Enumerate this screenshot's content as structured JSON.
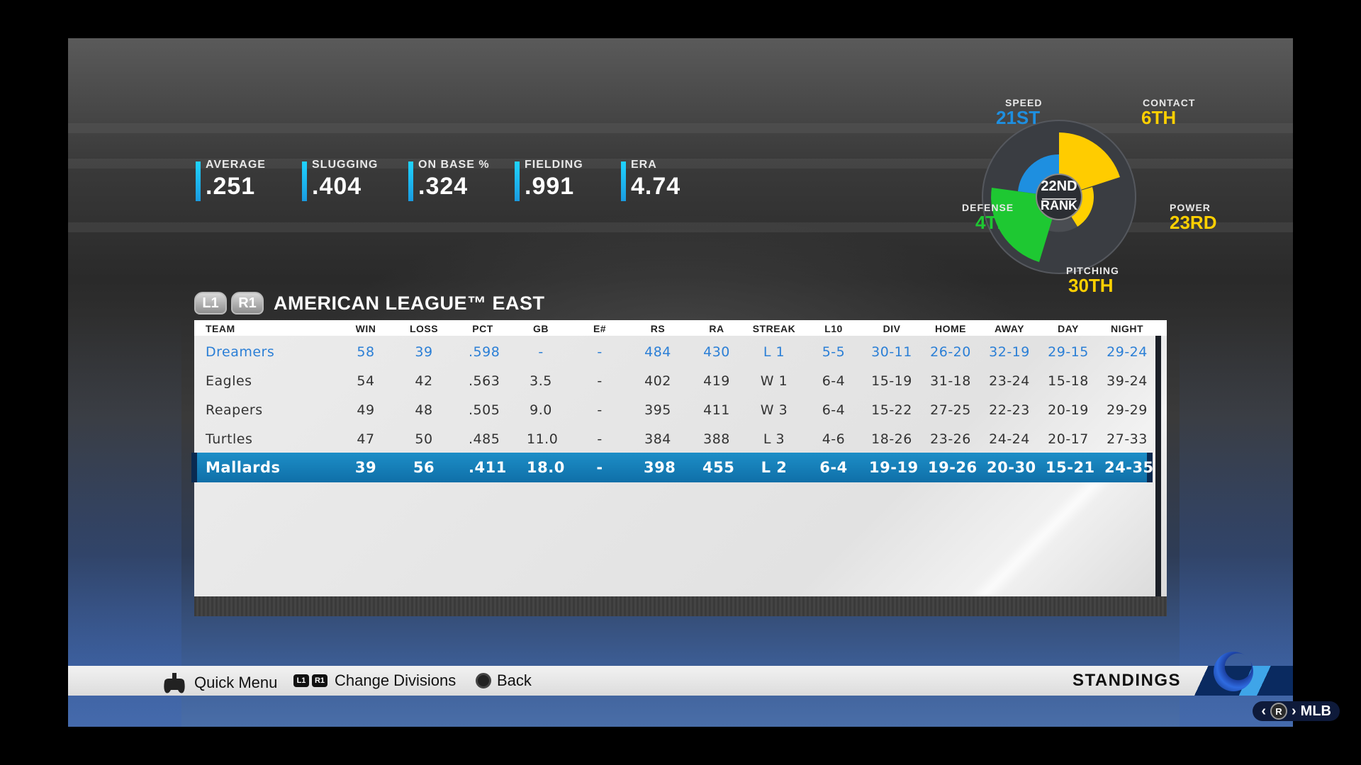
{
  "team_stats": [
    {
      "label": "AVERAGE",
      "value": ".251"
    },
    {
      "label": "SLUGGING",
      "value": ".404"
    },
    {
      "label": "ON BASE %",
      "value": ".324"
    },
    {
      "label": "FIELDING",
      "value": ".991"
    },
    {
      "label": "ERA",
      "value": "4.74"
    }
  ],
  "rank_chart": {
    "center_rank": "22ND",
    "center_label": "RANK",
    "categories": [
      {
        "label": "SPEED",
        "rank": "21ST",
        "color": "#1e8fe0"
      },
      {
        "label": "CONTACT",
        "rank": "6TH",
        "color": "#ffd000"
      },
      {
        "label": "POWER",
        "rank": "23RD",
        "color": "#ffd000"
      },
      {
        "label": "PITCHING",
        "rank": "30TH",
        "color": "#ffd000"
      },
      {
        "label": "DEFENSE",
        "rank": "4TH",
        "color": "#1ec832"
      }
    ]
  },
  "division": {
    "l_button": "L1",
    "r_button": "R1",
    "title": "AMERICAN LEAGUE™ EAST"
  },
  "table": {
    "columns": [
      "TEAM",
      "WIN",
      "LOSS",
      "PCT",
      "GB",
      "E#",
      "RS",
      "RA",
      "STREAK",
      "L10",
      "DIV",
      "HOME",
      "AWAY",
      "DAY",
      "NIGHT"
    ],
    "rows": [
      [
        "Dreamers",
        "58",
        "39",
        ".598",
        "-",
        "-",
        "484",
        "430",
        "L 1",
        "5-5",
        "30-11",
        "26-20",
        "32-19",
        "29-15",
        "29-24"
      ],
      [
        "Eagles",
        "54",
        "42",
        ".563",
        "3.5",
        "-",
        "402",
        "419",
        "W 1",
        "6-4",
        "15-19",
        "31-18",
        "23-24",
        "15-18",
        "39-24"
      ],
      [
        "Reapers",
        "49",
        "48",
        ".505",
        "9.0",
        "-",
        "395",
        "411",
        "W 3",
        "6-4",
        "15-22",
        "27-25",
        "22-23",
        "20-19",
        "29-29"
      ],
      [
        "Turtles",
        "47",
        "50",
        ".485",
        "11.0",
        "-",
        "384",
        "388",
        "L 3",
        "4-6",
        "18-26",
        "23-26",
        "24-24",
        "20-17",
        "27-33"
      ],
      [
        "Mallards",
        "39",
        "56",
        ".411",
        "18.0",
        "-",
        "398",
        "455",
        "L 2",
        "6-4",
        "19-19",
        "19-26",
        "20-30",
        "15-21",
        "24-35"
      ]
    ],
    "highlight_row": 0,
    "selected_row": 4
  },
  "bottom_bar": {
    "quick_menu": "Quick Menu",
    "l1": "L1",
    "r1": "R1",
    "change_divisions": "Change Divisions",
    "back": "Back",
    "screen_title": "STANDINGS"
  },
  "nav": {
    "r_button": "R",
    "target": "MLB"
  }
}
